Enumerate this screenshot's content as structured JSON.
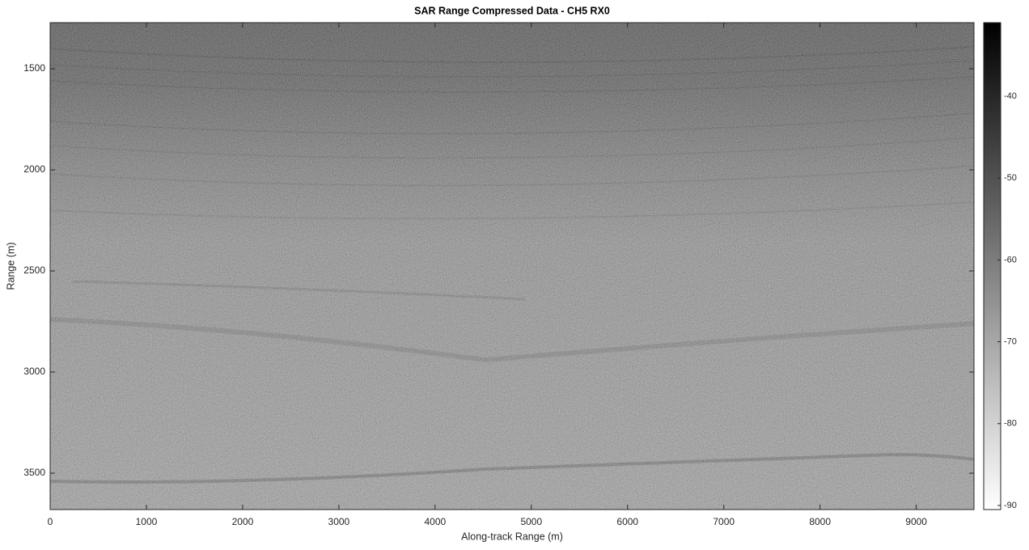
{
  "chart_data": {
    "type": "heatmap",
    "title": "SAR Range Compressed Data - CH5 RX0",
    "x_label": "Along-track Range (m)",
    "y_label": "Range (m)",
    "xlim": [
      0,
      9600
    ],
    "xticks": [
      0,
      1000,
      2000,
      3000,
      4000,
      5000,
      6000,
      7000,
      8000,
      9000
    ],
    "ylim": [
      1272,
      3680
    ],
    "y_reversed": true,
    "yticks": [
      1500,
      2000,
      2500,
      3000,
      3500
    ],
    "colormap": [
      "#ffffff",
      "#000000"
    ],
    "clim": [
      -90.5,
      -31
    ],
    "cticks": [
      -90,
      -80,
      -70,
      -60,
      -50,
      -40
    ]
  }
}
